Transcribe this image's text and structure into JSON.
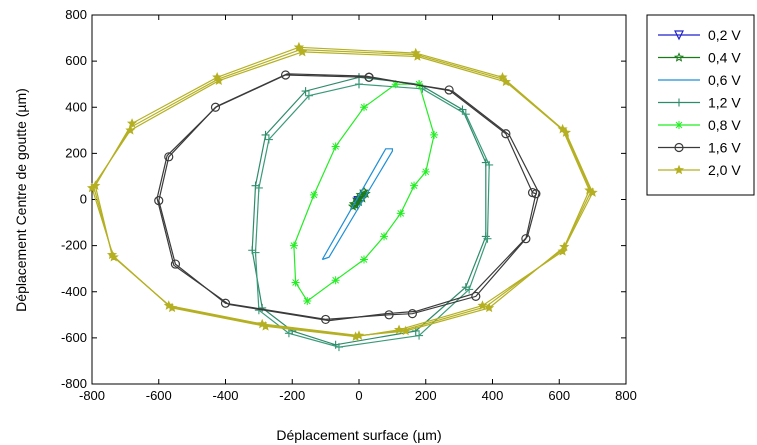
{
  "chart_data": {
    "type": "line",
    "xlabel": "Déplacement surface (µm)",
    "ylabel": "Déplacement Centre de goutte (µm)",
    "xlim": [
      -800,
      800
    ],
    "ylim": [
      -800,
      800
    ],
    "xticks": [
      "-800",
      "-600",
      "-400",
      "-200",
      "0",
      "200",
      "400",
      "600",
      "800"
    ],
    "yticks": [
      "800",
      "600",
      "400",
      "200",
      "0",
      "-200",
      "-400",
      "-600",
      "-800"
    ],
    "grid": false,
    "legend_position": "outside right",
    "series": [
      {
        "name": "0,2 V",
        "color": "#2222cc",
        "marker": "triangle-down",
        "markers_every": 3,
        "x": [
          -2,
          5,
          2,
          -5,
          -2
        ],
        "y": [
          -5,
          12,
          4,
          -12,
          -5
        ]
      },
      {
        "name": "0,4 V",
        "color": "#1a7a1a",
        "marker": "star",
        "markers_every": 1,
        "x": [
          -15,
          -5,
          5,
          15,
          20,
          10,
          0,
          -10,
          -18,
          -15
        ],
        "y": [
          -20,
          0,
          20,
          35,
          25,
          5,
          -10,
          -25,
          -30,
          -20
        ]
      },
      {
        "name": "0,6 V",
        "color": "#1f8fd6",
        "marker": "none",
        "markers_every": 1,
        "x": [
          -110,
          80,
          100,
          100,
          -90,
          -110
        ],
        "y": [
          -260,
          220,
          220,
          210,
          -250,
          -260
        ]
      },
      {
        "name": "1,2 V",
        "color": "#2e8b6a",
        "marker": "plus",
        "markers_every": 1,
        "x": [
          0,
          180,
          310,
          380,
          380,
          320,
          170,
          -70,
          -200,
          -290,
          -320,
          -310,
          -280,
          -160,
          0
        ],
        "y": [
          530,
          500,
          390,
          160,
          -160,
          -380,
          -570,
          -630,
          -570,
          -470,
          -220,
          60,
          280,
          470,
          530
        ]
      },
      {
        "name": "1,2 V (2)",
        "color": "#3a9a7a",
        "marker": "plus",
        "markers_every": 1,
        "x": [
          0,
          190,
          320,
          390,
          385,
          330,
          180,
          -60,
          -210,
          -300,
          -310,
          -300,
          -270,
          -150,
          0
        ],
        "y": [
          500,
          480,
          370,
          150,
          -170,
          -390,
          -590,
          -640,
          -580,
          -480,
          -230,
          50,
          260,
          450,
          500
        ]
      },
      {
        "name": "0,8 V",
        "color": "#22ee22",
        "marker": "asterisk",
        "markers_every": 1,
        "x": [
          180,
          225,
          200,
          165,
          125,
          75,
          15,
          -70,
          -155,
          -190,
          -195,
          -135,
          -70,
          15,
          110,
          180
        ],
        "y": [
          500,
          280,
          120,
          60,
          -60,
          -160,
          -260,
          -350,
          -440,
          -360,
          -200,
          20,
          230,
          400,
          500,
          500
        ]
      },
      {
        "name": "1,6 V",
        "color": "#3a3a3a",
        "marker": "circle",
        "markers_every": 1,
        "x": [
          30,
          270,
          440,
          520,
          530,
          500,
          350,
          160,
          90,
          -100,
          -400,
          -550,
          -600,
          -570,
          -430,
          -220,
          30
        ],
        "y": [
          530,
          475,
          285,
          30,
          25,
          -170,
          -420,
          -495,
          -500,
          -520,
          -450,
          -280,
          -5,
          185,
          400,
          540,
          530
        ]
      },
      {
        "name": "1,6 V (2)",
        "color": "#3a3a3a",
        "marker": "none",
        "markers_every": 1,
        "x": [
          20,
          280,
          450,
          535,
          540,
          505,
          340,
          170,
          80,
          -90,
          -390,
          -555,
          -605,
          -575,
          -425,
          -215,
          20
        ],
        "y": [
          535,
          470,
          280,
          40,
          30,
          -160,
          -410,
          -485,
          -495,
          -525,
          -455,
          -285,
          5,
          190,
          405,
          545,
          535
        ]
      },
      {
        "name": "2,0 V",
        "color": "#b5b022",
        "marker": "star-filled",
        "markers_every": 1,
        "x": [
          -180,
          170,
          430,
          610,
          690,
          615,
          390,
          140,
          0,
          -290,
          -570,
          -740,
          -790,
          -680,
          -425,
          -180
        ],
        "y": [
          660,
          635,
          530,
          305,
          40,
          -205,
          -470,
          -570,
          -590,
          -540,
          -460,
          -240,
          60,
          330,
          530,
          660
        ]
      },
      {
        "name": "2,0 V (2)",
        "color": "#b5b022",
        "marker": "star-filled",
        "markers_every": 1,
        "x": [
          -170,
          175,
          440,
          620,
          700,
          610,
          370,
          120,
          -10,
          -280,
          -560,
          -735,
          -800,
          -685,
          -420,
          -170
        ],
        "y": [
          640,
          620,
          510,
          290,
          30,
          -225,
          -460,
          -565,
          -595,
          -550,
          -470,
          -250,
          50,
          300,
          515,
          640
        ]
      },
      {
        "name": "2,0 V (3)",
        "color": "#b5b022",
        "marker": "none",
        "markers_every": 1,
        "x": [
          -175,
          172,
          435,
          615,
          695,
          612,
          380,
          130,
          -5,
          -285,
          -565,
          -738,
          -795,
          -682,
          -422,
          -175
        ],
        "y": [
          650,
          628,
          520,
          298,
          35,
          -215,
          -465,
          -568,
          -592,
          -545,
          -465,
          -245,
          55,
          315,
          522,
          650
        ]
      }
    ],
    "legend": [
      {
        "label": "0,2 V",
        "color": "#2222cc",
        "marker": "triangle-down"
      },
      {
        "label": "0,4 V",
        "color": "#1a7a1a",
        "marker": "star"
      },
      {
        "label": "0,6 V",
        "color": "#1f8fd6",
        "marker": "none"
      },
      {
        "label": "1,2 V",
        "color": "#2e8b6a",
        "marker": "plus"
      },
      {
        "label": "0,8 V",
        "color": "#22ee22",
        "marker": "asterisk"
      },
      {
        "label": "1,6 V",
        "color": "#3a3a3a",
        "marker": "circle"
      },
      {
        "label": "2,0 V",
        "color": "#b5b022",
        "marker": "star-filled"
      }
    ]
  }
}
